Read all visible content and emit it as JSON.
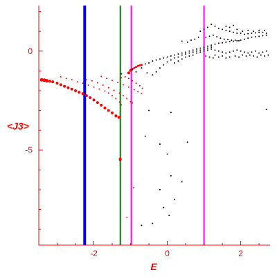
{
  "chart_data": {
    "type": "scatter",
    "xlabel": "E",
    "ylabel": "<J3>",
    "xlim": [
      -3.5,
      2.8
    ],
    "ylim": [
      -9.8,
      2.3
    ],
    "x_ticks": [
      -2,
      0,
      2
    ],
    "x_tick_labels": [
      "-2",
      "0",
      "2"
    ],
    "y_ticks": [
      0,
      -5
    ],
    "y_tick_labels": [
      "0",
      "-5"
    ],
    "grid": false,
    "colors": {
      "axis": "#ff0000",
      "red_series": "#ff0000",
      "black_series": "#000000",
      "blue_line": "#0000ff",
      "green_line": "#008000",
      "magenta_line": "#ff00ff"
    },
    "vertical_lines": [
      {
        "x": -2.25,
        "color": "#0000ff",
        "width": 4
      },
      {
        "x": -1.28,
        "color": "#008000",
        "width": 2
      },
      {
        "x": -0.98,
        "color": "#ff00ff",
        "width": 2
      },
      {
        "x": 1.0,
        "color": "#ff00ff",
        "width": 2
      }
    ],
    "series": [
      {
        "color": "#ff0000",
        "points": [
          [
            -3.42,
            -1.45,
            5
          ],
          [
            -3.35,
            -1.47,
            5
          ],
          [
            -3.28,
            -1.5,
            5
          ],
          [
            -3.2,
            -1.52,
            4
          ],
          [
            -3.12,
            -1.55,
            4
          ],
          [
            -3.0,
            -1.62,
            4
          ],
          [
            -2.9,
            -1.7,
            4
          ],
          [
            -2.8,
            -1.78,
            4
          ],
          [
            -2.7,
            -1.85,
            4
          ],
          [
            -2.6,
            -1.92,
            4
          ],
          [
            -2.5,
            -2.0,
            4
          ],
          [
            -2.4,
            -2.08,
            4
          ],
          [
            -2.3,
            -2.15,
            4
          ],
          [
            -2.2,
            -2.25,
            4
          ],
          [
            -2.1,
            -2.35,
            4
          ],
          [
            -2.0,
            -2.47,
            4
          ],
          [
            -1.9,
            -2.6,
            4
          ],
          [
            -1.8,
            -2.73,
            4
          ],
          [
            -1.7,
            -2.87,
            4
          ],
          [
            -1.6,
            -3.0,
            4
          ],
          [
            -1.5,
            -3.12,
            4
          ],
          [
            -1.4,
            -3.27,
            4
          ],
          [
            -1.32,
            -3.35,
            4
          ],
          [
            -2.9,
            -1.3,
            2
          ],
          [
            -2.75,
            -1.38,
            2
          ],
          [
            -2.6,
            -1.45,
            2
          ],
          [
            -2.45,
            -1.55,
            2
          ],
          [
            -2.3,
            -1.62,
            2
          ],
          [
            -2.15,
            -1.72,
            2
          ],
          [
            -2.0,
            -1.82,
            2
          ],
          [
            -1.85,
            -1.92,
            2
          ],
          [
            -1.7,
            -2.02,
            2
          ],
          [
            -1.6,
            -2.12,
            2
          ],
          [
            -1.5,
            -2.25,
            2
          ],
          [
            -1.4,
            -2.4,
            2
          ],
          [
            -1.3,
            -2.58,
            2
          ],
          [
            -1.25,
            -2.72,
            2
          ],
          [
            -2.2,
            -1.45,
            2
          ],
          [
            -2.05,
            -1.5,
            2
          ],
          [
            -1.9,
            -1.6,
            2
          ],
          [
            -1.75,
            -1.72,
            2
          ],
          [
            -1.6,
            -1.85,
            2
          ],
          [
            -1.45,
            -1.98,
            2
          ],
          [
            -1.3,
            -2.12,
            2
          ],
          [
            -1.2,
            -2.25,
            2
          ],
          [
            -1.1,
            -2.4,
            2
          ],
          [
            -1.0,
            -2.55,
            2
          ],
          [
            -0.95,
            -2.62,
            2
          ],
          [
            -1.8,
            -1.28,
            2
          ],
          [
            -1.65,
            -1.38,
            2
          ],
          [
            -1.5,
            -1.48,
            2
          ],
          [
            -1.35,
            -1.58,
            2
          ],
          [
            -1.2,
            -1.7,
            2
          ],
          [
            -1.05,
            -1.82,
            2
          ],
          [
            -0.9,
            -1.95,
            2
          ],
          [
            -0.8,
            -2.05,
            2
          ],
          [
            -0.7,
            -2.15,
            2
          ],
          [
            -1.05,
            -1.1,
            4
          ],
          [
            -1.0,
            -0.98,
            4
          ],
          [
            -0.95,
            -0.9,
            3
          ],
          [
            -0.9,
            -0.85,
            3
          ],
          [
            -0.85,
            -0.8,
            3
          ],
          [
            -0.8,
            -0.75,
            3
          ],
          [
            -0.75,
            -0.72,
            3
          ],
          [
            -0.7,
            -0.7,
            3
          ],
          [
            -1.25,
            -1.35,
            2
          ],
          [
            -1.15,
            -1.3,
            2
          ],
          [
            -1.05,
            -1.38,
            2
          ],
          [
            -0.95,
            -1.5,
            2
          ],
          [
            -0.85,
            -1.62,
            2
          ],
          [
            -0.75,
            -1.75,
            2
          ],
          [
            -0.68,
            -1.88,
            2
          ],
          [
            -1.28,
            -5.45,
            4
          ],
          [
            -1.28,
            -5.48,
            4
          ],
          [
            -0.92,
            -6.9,
            2
          ],
          [
            -1.1,
            -8.4,
            2
          ]
        ]
      },
      {
        "color": "#000000",
        "points": [
          [
            -1.25,
            -1.15
          ],
          [
            -0.95,
            -0.95
          ],
          [
            -0.85,
            -1.05
          ],
          [
            -0.7,
            -0.85
          ],
          [
            -0.6,
            -0.65
          ],
          [
            -0.5,
            -0.6
          ],
          [
            -0.4,
            -0.5
          ],
          [
            -0.3,
            -0.45
          ],
          [
            -0.2,
            -0.4
          ],
          [
            -0.1,
            -0.35
          ],
          [
            0.0,
            -0.3
          ],
          [
            0.1,
            -0.25
          ],
          [
            0.2,
            -0.2
          ],
          [
            0.3,
            -0.15
          ],
          [
            0.4,
            -0.1
          ],
          [
            0.5,
            -0.05
          ],
          [
            0.6,
            0.0
          ],
          [
            0.7,
            0.05
          ],
          [
            0.8,
            0.1
          ],
          [
            0.9,
            0.15
          ],
          [
            1.0,
            0.2
          ],
          [
            1.1,
            0.25
          ],
          [
            1.2,
            0.3
          ],
          [
            1.3,
            0.35
          ],
          [
            1.4,
            0.4
          ],
          [
            1.5,
            0.42
          ],
          [
            1.6,
            0.45
          ],
          [
            1.7,
            0.48
          ],
          [
            1.8,
            0.5
          ],
          [
            1.9,
            0.52
          ],
          [
            2.0,
            0.55
          ],
          [
            2.1,
            0.6
          ],
          [
            2.2,
            0.65
          ],
          [
            2.3,
            0.7
          ],
          [
            2.4,
            0.72
          ],
          [
            2.5,
            0.75
          ],
          [
            2.6,
            0.78
          ],
          [
            2.7,
            0.8
          ],
          [
            -0.55,
            -1.1
          ],
          [
            -0.4,
            -1.2
          ],
          [
            -0.3,
            -1.05
          ],
          [
            -0.2,
            -0.85
          ],
          [
            -0.1,
            -0.7
          ],
          [
            0.0,
            -0.55
          ],
          [
            0.1,
            -0.45
          ],
          [
            0.2,
            -0.35
          ],
          [
            0.3,
            -0.3
          ],
          [
            0.4,
            -0.2
          ],
          [
            0.5,
            -0.15
          ],
          [
            0.6,
            -0.1
          ],
          [
            0.7,
            -0.05
          ],
          [
            0.8,
            0.0
          ],
          [
            0.9,
            0.05
          ],
          [
            1.0,
            0.1
          ],
          [
            1.1,
            0.15
          ],
          [
            1.2,
            0.2
          ],
          [
            0.2,
            -0.6
          ],
          [
            0.3,
            -0.5
          ],
          [
            0.4,
            -0.4
          ],
          [
            0.5,
            -0.3
          ],
          [
            0.6,
            -0.25
          ],
          [
            0.7,
            -0.2
          ],
          [
            0.8,
            -0.1
          ],
          [
            0.9,
            -0.05
          ],
          [
            1.0,
            0.0
          ],
          [
            1.1,
            0.05
          ],
          [
            1.2,
            0.1
          ],
          [
            1.3,
            0.05
          ],
          [
            1.4,
            0.0
          ],
          [
            1.5,
            -0.05
          ],
          [
            1.6,
            -0.1
          ],
          [
            1.7,
            -0.05
          ],
          [
            1.8,
            0.0
          ],
          [
            1.9,
            0.05
          ],
          [
            2.0,
            0.0
          ],
          [
            2.1,
            -0.05
          ],
          [
            2.2,
            -0.1
          ],
          [
            2.3,
            -0.05
          ],
          [
            2.4,
            0.0
          ],
          [
            2.5,
            -0.1
          ],
          [
            2.6,
            -0.05
          ],
          [
            2.7,
            0.0
          ],
          [
            2.75,
            -0.2
          ],
          [
            2.65,
            -0.25
          ],
          [
            2.55,
            -0.2
          ],
          [
            2.45,
            -0.3
          ],
          [
            2.35,
            -0.25
          ],
          [
            2.25,
            -0.2
          ],
          [
            2.15,
            -0.25
          ],
          [
            2.05,
            -0.2
          ],
          [
            1.95,
            -0.3
          ],
          [
            1.85,
            -0.25
          ],
          [
            0.9,
            1.0
          ],
          [
            1.0,
            1.1
          ],
          [
            1.1,
            1.2
          ],
          [
            1.2,
            1.35
          ],
          [
            1.3,
            1.25
          ],
          [
            1.4,
            1.15
          ],
          [
            1.5,
            1.1
          ],
          [
            1.6,
            1.05
          ],
          [
            1.7,
            1.0
          ],
          [
            1.8,
            0.95
          ],
          [
            1.9,
            0.9
          ],
          [
            2.0,
            0.9
          ],
          [
            2.1,
            0.85
          ],
          [
            2.2,
            0.88
          ],
          [
            2.3,
            0.9
          ],
          [
            2.4,
            0.92
          ],
          [
            2.5,
            0.95
          ],
          [
            2.6,
            0.95
          ],
          [
            2.7,
            0.9
          ],
          [
            1.05,
            0.7
          ],
          [
            1.15,
            0.75
          ],
          [
            1.25,
            0.8
          ],
          [
            1.35,
            0.72
          ],
          [
            1.45,
            0.65
          ],
          [
            1.55,
            0.6
          ],
          [
            1.65,
            0.58
          ],
          [
            1.75,
            0.55
          ],
          [
            1.85,
            0.55
          ],
          [
            1.95,
            0.52
          ],
          [
            0.4,
            0.5
          ],
          [
            0.55,
            0.45
          ],
          [
            0.65,
            0.55
          ],
          [
            0.75,
            0.6
          ],
          [
            0.85,
            0.7
          ],
          [
            1.3,
            -0.2
          ],
          [
            1.4,
            -0.3
          ],
          [
            1.5,
            -0.25
          ],
          [
            1.6,
            -0.35
          ],
          [
            1.7,
            -0.3
          ],
          [
            1.05,
            -0.25
          ],
          [
            1.15,
            -0.3
          ],
          [
            1.25,
            -0.35
          ],
          [
            1.9,
            1.1
          ],
          [
            2.05,
            1.0
          ],
          [
            2.2,
            1.05
          ],
          [
            2.35,
            1.0
          ],
          [
            2.5,
            1.05
          ],
          [
            2.65,
            1.05
          ],
          [
            1.6,
            1.25
          ],
          [
            1.7,
            1.2
          ],
          [
            1.8,
            1.3
          ],
          [
            -0.5,
            -3.0
          ],
          [
            -0.6,
            -4.3
          ],
          [
            -0.2,
            -4.7
          ],
          [
            0.0,
            -5.2
          ],
          [
            0.1,
            -3.1
          ],
          [
            0.1,
            -6.3
          ],
          [
            0.4,
            -6.6
          ],
          [
            0.55,
            -4.6
          ],
          [
            -0.2,
            -7.0
          ],
          [
            0.2,
            -7.5
          ],
          [
            -0.1,
            -7.9
          ],
          [
            -0.4,
            -8.7
          ],
          [
            -0.7,
            -8.8
          ],
          [
            0.05,
            -8.3
          ],
          [
            2.7,
            -2.95
          ]
        ]
      }
    ]
  }
}
